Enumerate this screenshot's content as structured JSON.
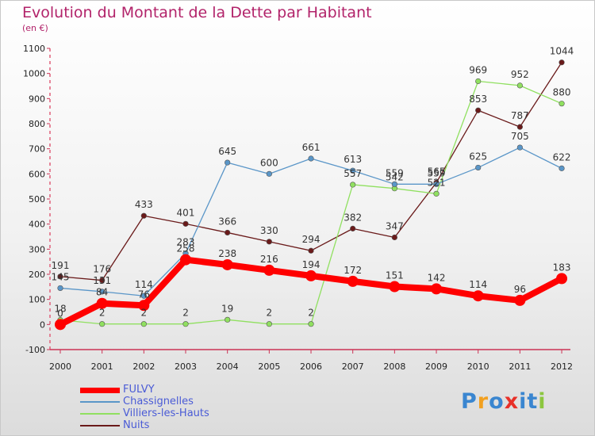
{
  "chart_data": {
    "type": "line",
    "title": "Evolution du Montant de la Dette par Habitant",
    "subtitle": "(en €)",
    "xlabel": "",
    "ylabel": "",
    "x": [
      "2000",
      "2001",
      "2002",
      "2003",
      "2004",
      "2005",
      "2006",
      "2007",
      "2008",
      "2009",
      "2010",
      "2011",
      "2012"
    ],
    "ylim": [
      -100,
      1100
    ],
    "yticks": [
      "-100",
      "0",
      "100",
      "200",
      "300",
      "400",
      "500",
      "600",
      "700",
      "800",
      "900",
      "1000",
      "1100"
    ],
    "grid": false,
    "legend_position": "bottom-left",
    "series": [
      {
        "name": "FULVY",
        "color": "#ff0000",
        "values": [
          0,
          84,
          76,
          258,
          238,
          216,
          194,
          172,
          151,
          142,
          114,
          96,
          183
        ],
        "labels": [
          "0",
          "84",
          "76",
          "258",
          "238",
          "216",
          "194",
          "172",
          "151",
          "142",
          "114",
          "96",
          "183"
        ]
      },
      {
        "name": "Chassignelles",
        "color": "#5a96c8",
        "values": [
          145,
          131,
          114,
          283,
          645,
          600,
          661,
          613,
          559,
          559,
          625,
          705,
          622
        ],
        "labels": [
          "145",
          "131",
          "114",
          "283",
          "645",
          "600",
          "661",
          "613",
          "559",
          "559",
          "625",
          "705",
          "622"
        ]
      },
      {
        "name": "Villiers-les-Hauts",
        "color": "#90e060",
        "values": [
          18,
          2,
          2,
          2,
          19,
          2,
          2,
          557,
          542,
          521,
          969,
          952,
          880
        ],
        "labels": [
          "18",
          "2",
          "2",
          "2",
          "19",
          "2",
          "2",
          "557",
          "542",
          "521",
          "969",
          "952",
          "880"
        ]
      },
      {
        "name": "Nuits",
        "color": "#6a1a1a",
        "values": [
          191,
          176,
          433,
          401,
          366,
          330,
          294,
          382,
          347,
          565,
          853,
          787,
          1044
        ],
        "labels": [
          "191",
          "176",
          "433",
          "401",
          "366",
          "330",
          "294",
          "382",
          "347",
          "565",
          "853",
          "787",
          "1044"
        ]
      }
    ]
  },
  "logo": {
    "text": "Proxiti",
    "letters": [
      "P",
      "r",
      "o",
      "x",
      "i",
      "t",
      "i"
    ],
    "colors": [
      "#3a86d0",
      "#f2a020",
      "#3a86d0",
      "#e83028",
      "#3a86d0",
      "#3a86d0",
      "#8cc63f"
    ]
  }
}
